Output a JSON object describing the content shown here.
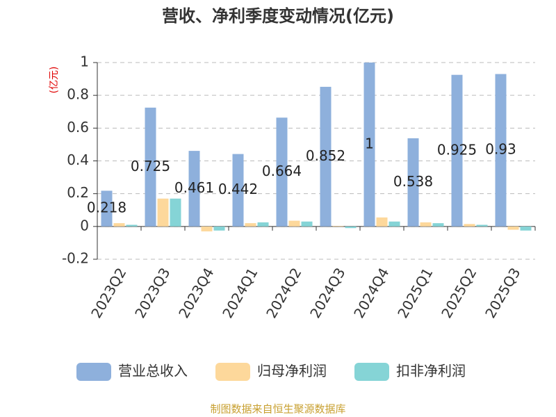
{
  "chart_data": {
    "type": "bar",
    "title": "营收、净利季度变动情况(亿元)",
    "y_axis_label": "(亿元)",
    "categories": [
      "2023Q2",
      "2023Q3",
      "2023Q4",
      "2024Q1",
      "2024Q2",
      "2024Q3",
      "2024Q4",
      "2025Q1",
      "2025Q2",
      "2025Q3"
    ],
    "series": [
      {
        "name": "营业总收入",
        "color": "#8eb0dc",
        "values": [
          0.218,
          0.725,
          0.461,
          0.442,
          0.664,
          0.852,
          1,
          0.538,
          0.925,
          0.93
        ],
        "show_labels": true
      },
      {
        "name": "归母净利润",
        "color": "#fdd89b",
        "values": [
          0.02,
          0.17,
          -0.03,
          0.02,
          0.035,
          0.003,
          0.055,
          0.025,
          0.015,
          -0.02
        ]
      },
      {
        "name": "扣非净利润",
        "color": "#85d4d6",
        "values": [
          0.01,
          0.17,
          -0.025,
          0.025,
          0.03,
          -0.01,
          0.03,
          0.02,
          0.01,
          -0.025
        ]
      }
    ],
    "ylim": [
      -0.2,
      1
    ],
    "yticks": [
      -0.2,
      0,
      0.2,
      0.4,
      0.6,
      0.8,
      1
    ],
    "grid": true,
    "source": "制图数据来自恒生聚源数据库"
  }
}
